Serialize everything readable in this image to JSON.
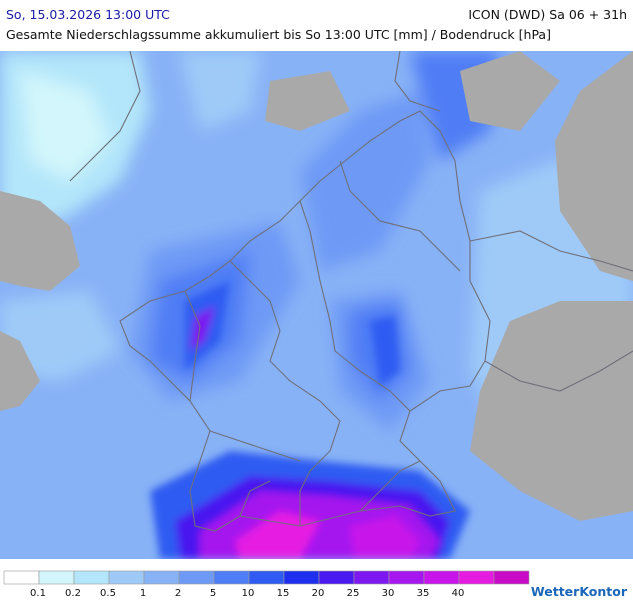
{
  "header": {
    "datetime": "So, 15.03.2026 13:00 UTC",
    "model": "ICON (DWD) Sa 06 + 31h",
    "subtitle": "Gesamte Niederschlagssumme akkumuliert bis So 13:00 UTC [mm] / Bodendruck [hPa]"
  },
  "legend": {
    "bins": [
      {
        "label": "",
        "color": "#ffffff"
      },
      {
        "label": "0.1",
        "color": "#d2f6fb"
      },
      {
        "label": "0.2",
        "color": "#b3e6fa"
      },
      {
        "label": "0.5",
        "color": "#9fcaf8"
      },
      {
        "label": "1",
        "color": "#88b2f6"
      },
      {
        "label": "2",
        "color": "#6e9af6"
      },
      {
        "label": "5",
        "color": "#4f7df5"
      },
      {
        "label": "10",
        "color": "#2f5bf2"
      },
      {
        "label": "15",
        "color": "#1e2ff0"
      },
      {
        "label": "20",
        "color": "#4a19f0"
      },
      {
        "label": "25",
        "color": "#7d18f0"
      },
      {
        "label": "30",
        "color": "#a517ee"
      },
      {
        "label": "35",
        "color": "#c816ea"
      },
      {
        "label": "40",
        "color": "#e61be2"
      },
      {
        "label": "",
        "color": "#c80bc6"
      }
    ]
  },
  "brand": "WetterKontor",
  "map_colors": {
    "land_no_data": "#a9a9a9",
    "borders": "#6f6f7a",
    "precip_base": "#6e9af6"
  }
}
